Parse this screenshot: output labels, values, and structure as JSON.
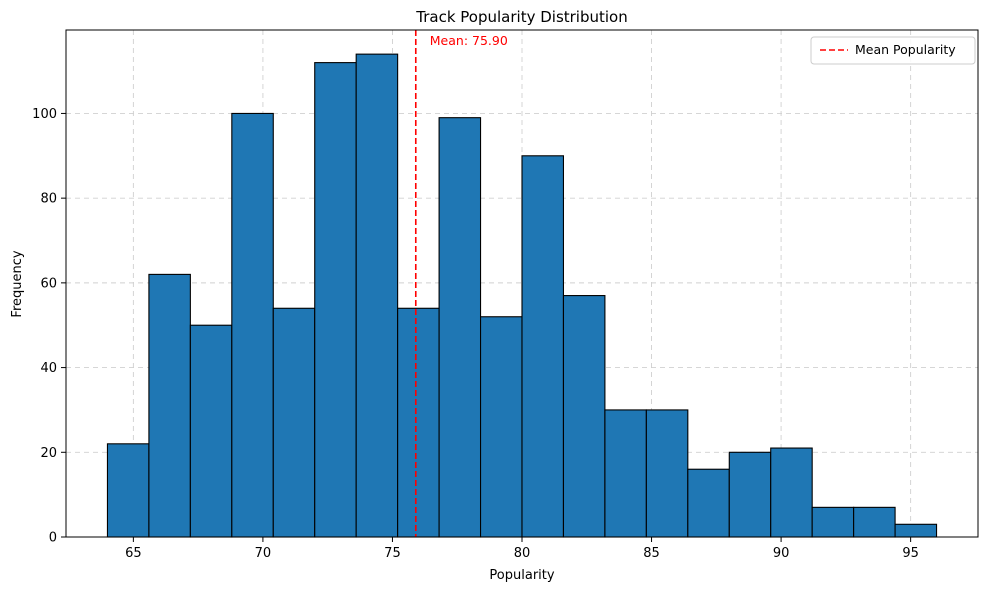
{
  "chart_data": {
    "type": "bar",
    "title": "Track Popularity Distribution",
    "xlabel": "Popularity",
    "ylabel": "Frequency",
    "bin_edges": [
      64,
      65.6,
      67.2,
      68.8,
      70.4,
      72,
      73.6,
      75.2,
      76.8,
      78.4,
      80,
      81.6,
      83.2,
      84.8,
      86.4,
      88,
      89.6,
      91.2,
      92.8,
      94.4,
      96
    ],
    "values": [
      22,
      62,
      50,
      100,
      54,
      112,
      114,
      54,
      99,
      52,
      90,
      57,
      30,
      30,
      16,
      20,
      21,
      7,
      7,
      3
    ],
    "xlim": [
      62.4,
      97.6
    ],
    "ylim": [
      0,
      119.7
    ],
    "xticks": [
      65,
      70,
      75,
      80,
      85,
      90,
      95
    ],
    "yticks": [
      0,
      20,
      40,
      60,
      80,
      100
    ],
    "mean": 75.9,
    "mean_label": "Mean: 75.90",
    "legend": {
      "entries": [
        "Mean Popularity"
      ],
      "position": "top-right"
    },
    "grid": true,
    "colors": {
      "bar": "#1f77b4",
      "edge": "#000000",
      "mean": "#ff0000",
      "grid": "#d0d0d0"
    }
  }
}
